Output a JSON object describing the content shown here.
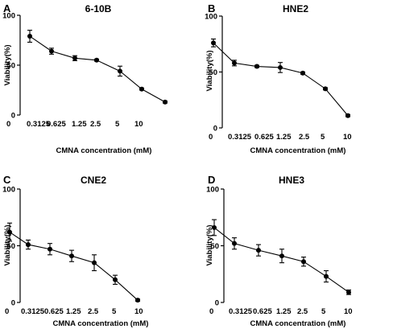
{
  "chart_data": [
    {
      "type": "line",
      "panel_letter": "A",
      "title": "6-10B",
      "xlabel": "CMNA concentration (mM)",
      "ylabel": "Viability(%)",
      "categories": [
        "0",
        "0.3125",
        "0.625",
        "1.25",
        "2.5",
        "5",
        "10"
      ],
      "yticks": [
        0,
        50,
        100
      ],
      "ylim": [
        0,
        100
      ],
      "series": [
        {
          "values": [
            79,
            64,
            57,
            55,
            44,
            26,
            13
          ],
          "errors": [
            6,
            3,
            2.5,
            1,
            5,
            1,
            1
          ]
        }
      ]
    },
    {
      "type": "line",
      "panel_letter": "B",
      "title": "HNE2",
      "xlabel": "CMNA concentration (mM)",
      "ylabel": "Viability(%)",
      "categories": [
        "0",
        "0.3125",
        "0.625",
        "1.25",
        "2.5",
        "5",
        "10"
      ],
      "yticks": [
        0,
        50,
        100
      ],
      "ylim": [
        0,
        100
      ],
      "series": [
        {
          "values": [
            76,
            58,
            55,
            54,
            49,
            35,
            11
          ],
          "errors": [
            3.5,
            2.5,
            1,
            4.5,
            1,
            1,
            1
          ]
        }
      ]
    },
    {
      "type": "line",
      "panel_letter": "C",
      "title": "CNE2",
      "xlabel": "CMNA concentration (mM)",
      "ylabel": "Viability(%)",
      "categories": [
        "0",
        "0.3125",
        "0.625",
        "1.25",
        "2.5",
        "5",
        "10"
      ],
      "yticks": [
        0,
        50,
        100
      ],
      "ylim": [
        0,
        100
      ],
      "series": [
        {
          "values": [
            62,
            51,
            47,
            41,
            35,
            20,
            2
          ],
          "errors": [
            8,
            4,
            5,
            5,
            7,
            4,
            1
          ]
        }
      ]
    },
    {
      "type": "line",
      "panel_letter": "D",
      "title": "HNE3",
      "xlabel": "CMNA concentration (mM)",
      "ylabel": "Viability(%)",
      "categories": [
        "0",
        "0.3125",
        "0.625",
        "1.25",
        "2.5",
        "5",
        "10"
      ],
      "yticks": [
        0,
        50,
        100
      ],
      "ylim": [
        0,
        100
      ],
      "series": [
        {
          "values": [
            66,
            52,
            46,
            41,
            36,
            23,
            9
          ],
          "errors": [
            7,
            5,
            5,
            6,
            4,
            5,
            2
          ]
        }
      ]
    }
  ]
}
